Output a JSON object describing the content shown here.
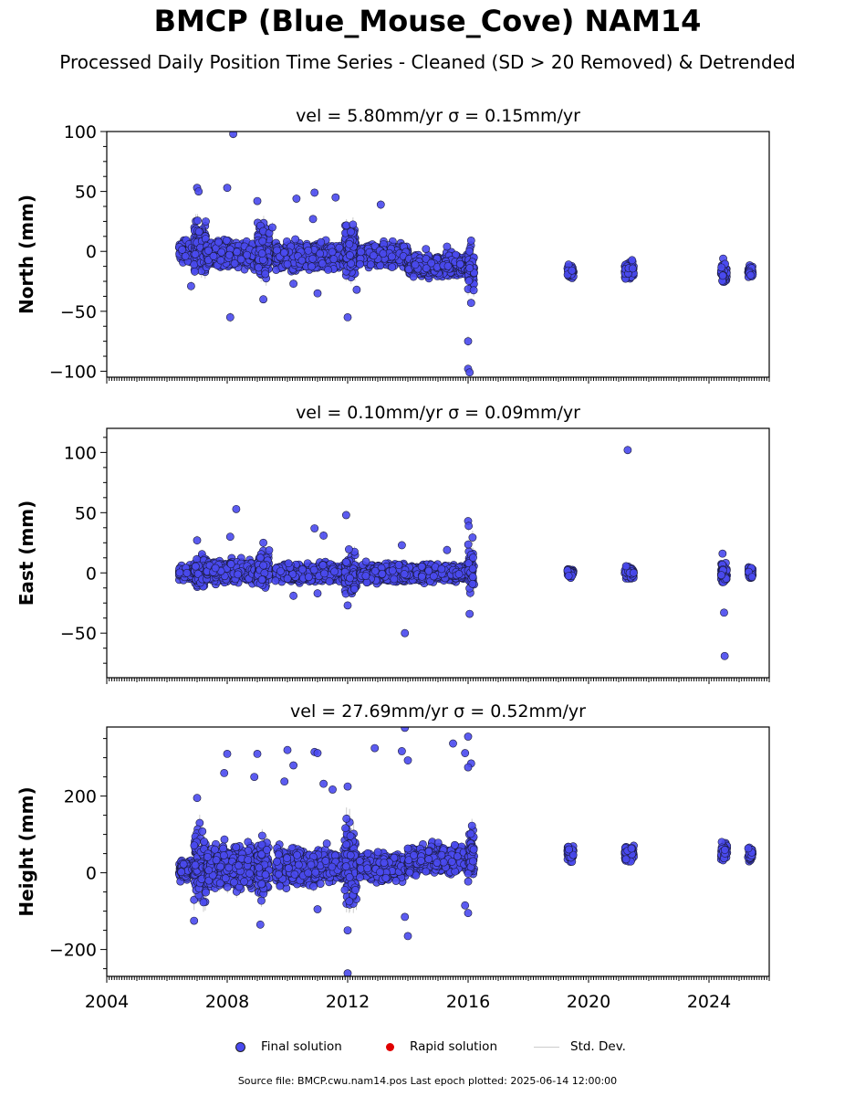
{
  "title": "BMCP (Blue_Mouse_Cove) NAM14",
  "subtitle": "Processed Daily Position Time Series - Cleaned (SD > 20 Removed) & Detrended",
  "legend": {
    "final": "Final solution",
    "rapid": "Rapid solution",
    "std": "Std. Dev."
  },
  "source": "Source file: BMCP.cwu.nam14.pos  Last epoch plotted: 2025-06-14 12:00:00",
  "colors": {
    "final": "#4a4aef",
    "rapid": "#e00000",
    "std": "#cccccc"
  },
  "chart_data": [
    {
      "type": "scatter",
      "panel_title": "vel = 5.80mm/yr   σ = 0.15mm/yr",
      "ylabel": "North (mm)",
      "xlim": [
        2004,
        2026
      ],
      "ylim": [
        -105,
        100
      ],
      "yticks": [
        -100,
        -50,
        0,
        50,
        100
      ],
      "xticks": [
        2004,
        2008,
        2012,
        2016,
        2020,
        2024
      ],
      "data_mode": "estimated-cluster-summary",
      "clusters": [
        {
          "x_start": 2006.4,
          "x_end": 2006.9,
          "center": 0,
          "spread": 5
        },
        {
          "x_start": 2006.9,
          "x_end": 2007.3,
          "center": 5,
          "spread": 12
        },
        {
          "x_start": 2007.3,
          "x_end": 2009.0,
          "center": -3,
          "spread": 6
        },
        {
          "x_start": 2009.0,
          "x_end": 2009.4,
          "center": 0,
          "spread": 12
        },
        {
          "x_start": 2009.6,
          "x_end": 2011.9,
          "center": -4,
          "spread": 6
        },
        {
          "x_start": 2011.9,
          "x_end": 2012.3,
          "center": 0,
          "spread": 14
        },
        {
          "x_start": 2012.4,
          "x_end": 2014.0,
          "center": -3,
          "spread": 5
        },
        {
          "x_start": 2014.0,
          "x_end": 2016.0,
          "center": -12,
          "spread": 5
        },
        {
          "x_start": 2016.0,
          "x_end": 2016.2,
          "center": -15,
          "spread": 10
        },
        {
          "x_start": 2019.3,
          "x_end": 2019.5,
          "center": -17,
          "spread": 3
        },
        {
          "x_start": 2021.2,
          "x_end": 2021.5,
          "center": -16,
          "spread": 4
        },
        {
          "x_start": 2024.4,
          "x_end": 2024.6,
          "center": -18,
          "spread": 5
        },
        {
          "x_start": 2025.3,
          "x_end": 2025.45,
          "center": -17,
          "spread": 3
        }
      ],
      "outliers": [
        [
          2008.2,
          98
        ],
        [
          2007.0,
          53
        ],
        [
          2007.05,
          50
        ],
        [
          2008.0,
          53
        ],
        [
          2009.0,
          42
        ],
        [
          2010.3,
          44
        ],
        [
          2010.9,
          49
        ],
        [
          2010.85,
          27
        ],
        [
          2011.6,
          45
        ],
        [
          2013.1,
          39
        ],
        [
          2008.1,
          -55
        ],
        [
          2012.0,
          -55
        ],
        [
          2009.2,
          -40
        ],
        [
          2010.2,
          -27
        ],
        [
          2011.0,
          -35
        ],
        [
          2012.3,
          -32
        ],
        [
          2006.8,
          -29
        ],
        [
          2016.0,
          -75
        ],
        [
          2016.0,
          -98
        ],
        [
          2016.05,
          -101
        ],
        [
          2016.1,
          -43
        ],
        [
          2015.3,
          4
        ],
        [
          2014.6,
          2
        ],
        [
          2009.5,
          20
        ],
        [
          2016.1,
          9
        ]
      ]
    },
    {
      "type": "scatter",
      "panel_title": "vel = 0.10mm/yr   σ = 0.09mm/yr",
      "ylabel": "East (mm)",
      "xlim": [
        2004,
        2026
      ],
      "ylim": [
        -87,
        120
      ],
      "yticks": [
        -50,
        0,
        50,
        100
      ],
      "xticks": [
        2004,
        2008,
        2012,
        2016,
        2020,
        2024
      ],
      "data_mode": "estimated-cluster-summary",
      "clusters": [
        {
          "x_start": 2006.4,
          "x_end": 2006.9,
          "center": 0,
          "spread": 3
        },
        {
          "x_start": 2006.9,
          "x_end": 2007.3,
          "center": 2,
          "spread": 7
        },
        {
          "x_start": 2007.3,
          "x_end": 2009.0,
          "center": 1,
          "spread": 5
        },
        {
          "x_start": 2009.0,
          "x_end": 2009.4,
          "center": 4,
          "spread": 8
        },
        {
          "x_start": 2009.6,
          "x_end": 2011.9,
          "center": 0,
          "spread": 4
        },
        {
          "x_start": 2011.9,
          "x_end": 2012.3,
          "center": -2,
          "spread": 9
        },
        {
          "x_start": 2012.4,
          "x_end": 2016.0,
          "center": 0,
          "spread": 4
        },
        {
          "x_start": 2016.0,
          "x_end": 2016.2,
          "center": 0,
          "spread": 12
        },
        {
          "x_start": 2019.3,
          "x_end": 2019.5,
          "center": 0,
          "spread": 2
        },
        {
          "x_start": 2021.2,
          "x_end": 2021.5,
          "center": 0,
          "spread": 3
        },
        {
          "x_start": 2024.4,
          "x_end": 2024.6,
          "center": 0,
          "spread": 5
        },
        {
          "x_start": 2025.3,
          "x_end": 2025.45,
          "center": 0,
          "spread": 3
        }
      ],
      "outliers": [
        [
          2021.3,
          102
        ],
        [
          2008.3,
          53
        ],
        [
          2010.9,
          37
        ],
        [
          2011.95,
          48
        ],
        [
          2016.0,
          43
        ],
        [
          2016.02,
          39
        ],
        [
          2007.0,
          27
        ],
        [
          2008.1,
          30
        ],
        [
          2013.8,
          23
        ],
        [
          2015.3,
          19
        ],
        [
          2013.9,
          -50
        ],
        [
          2016.05,
          -34
        ],
        [
          2024.5,
          -33
        ],
        [
          2024.52,
          -69
        ],
        [
          2011.0,
          -17
        ],
        [
          2012.0,
          -27
        ],
        [
          2010.2,
          -19
        ],
        [
          2009.2,
          25
        ],
        [
          2024.45,
          16
        ],
        [
          2011.2,
          31
        ]
      ]
    },
    {
      "type": "scatter",
      "panel_title": "vel = 27.69mm/yr   σ = 0.52mm/yr",
      "ylabel": "Height (mm)",
      "xlim": [
        2004,
        2026
      ],
      "ylim": [
        -270,
        380
      ],
      "yticks": [
        -200,
        0,
        200
      ],
      "xticks": [
        2004,
        2008,
        2012,
        2016,
        2020,
        2024
      ],
      "xtick_labels": [
        "2004",
        "2008",
        "2012",
        "2016",
        "2020",
        "2024"
      ],
      "data_mode": "estimated-cluster-summary",
      "clusters": [
        {
          "x_start": 2006.4,
          "x_end": 2006.9,
          "center": 5,
          "spread": 15
        },
        {
          "x_start": 2006.9,
          "x_end": 2007.3,
          "center": 20,
          "spread": 55
        },
        {
          "x_start": 2007.3,
          "x_end": 2009.0,
          "center": 15,
          "spread": 30
        },
        {
          "x_start": 2009.0,
          "x_end": 2009.4,
          "center": 10,
          "spread": 45
        },
        {
          "x_start": 2009.6,
          "x_end": 2011.9,
          "center": 15,
          "spread": 25
        },
        {
          "x_start": 2011.9,
          "x_end": 2012.3,
          "center": 20,
          "spread": 65
        },
        {
          "x_start": 2012.4,
          "x_end": 2014.0,
          "center": 15,
          "spread": 20
        },
        {
          "x_start": 2014.0,
          "x_end": 2016.0,
          "center": 35,
          "spread": 20
        },
        {
          "x_start": 2016.0,
          "x_end": 2016.2,
          "center": 50,
          "spread": 40
        },
        {
          "x_start": 2019.3,
          "x_end": 2019.5,
          "center": 50,
          "spread": 12
        },
        {
          "x_start": 2021.2,
          "x_end": 2021.5,
          "center": 50,
          "spread": 12
        },
        {
          "x_start": 2024.4,
          "x_end": 2024.6,
          "center": 55,
          "spread": 15
        },
        {
          "x_start": 2025.3,
          "x_end": 2025.45,
          "center": 50,
          "spread": 10
        }
      ],
      "outliers": [
        [
          2013.9,
          378
        ],
        [
          2016.0,
          355
        ],
        [
          2015.5,
          337
        ],
        [
          2012.9,
          325
        ],
        [
          2010.0,
          320
        ],
        [
          2010.9,
          315
        ],
        [
          2011.0,
          312
        ],
        [
          2008.0,
          310
        ],
        [
          2009.0,
          310
        ],
        [
          2013.8,
          317
        ],
        [
          2015.9,
          312
        ],
        [
          2016.1,
          285
        ],
        [
          2014.0,
          293
        ],
        [
          2016.0,
          275
        ],
        [
          2010.2,
          280
        ],
        [
          2007.9,
          260
        ],
        [
          2008.9,
          250
        ],
        [
          2009.9,
          238
        ],
        [
          2011.2,
          232
        ],
        [
          2011.5,
          217
        ],
        [
          2012.0,
          225
        ],
        [
          2007.0,
          195
        ],
        [
          2012.0,
          -262
        ],
        [
          2006.9,
          -125
        ],
        [
          2014.0,
          -165
        ],
        [
          2012.0,
          -150
        ],
        [
          2009.1,
          -135
        ],
        [
          2016.0,
          -105
        ],
        [
          2015.9,
          -85
        ],
        [
          2013.9,
          -115
        ],
        [
          2011.0,
          -95
        ]
      ]
    }
  ]
}
